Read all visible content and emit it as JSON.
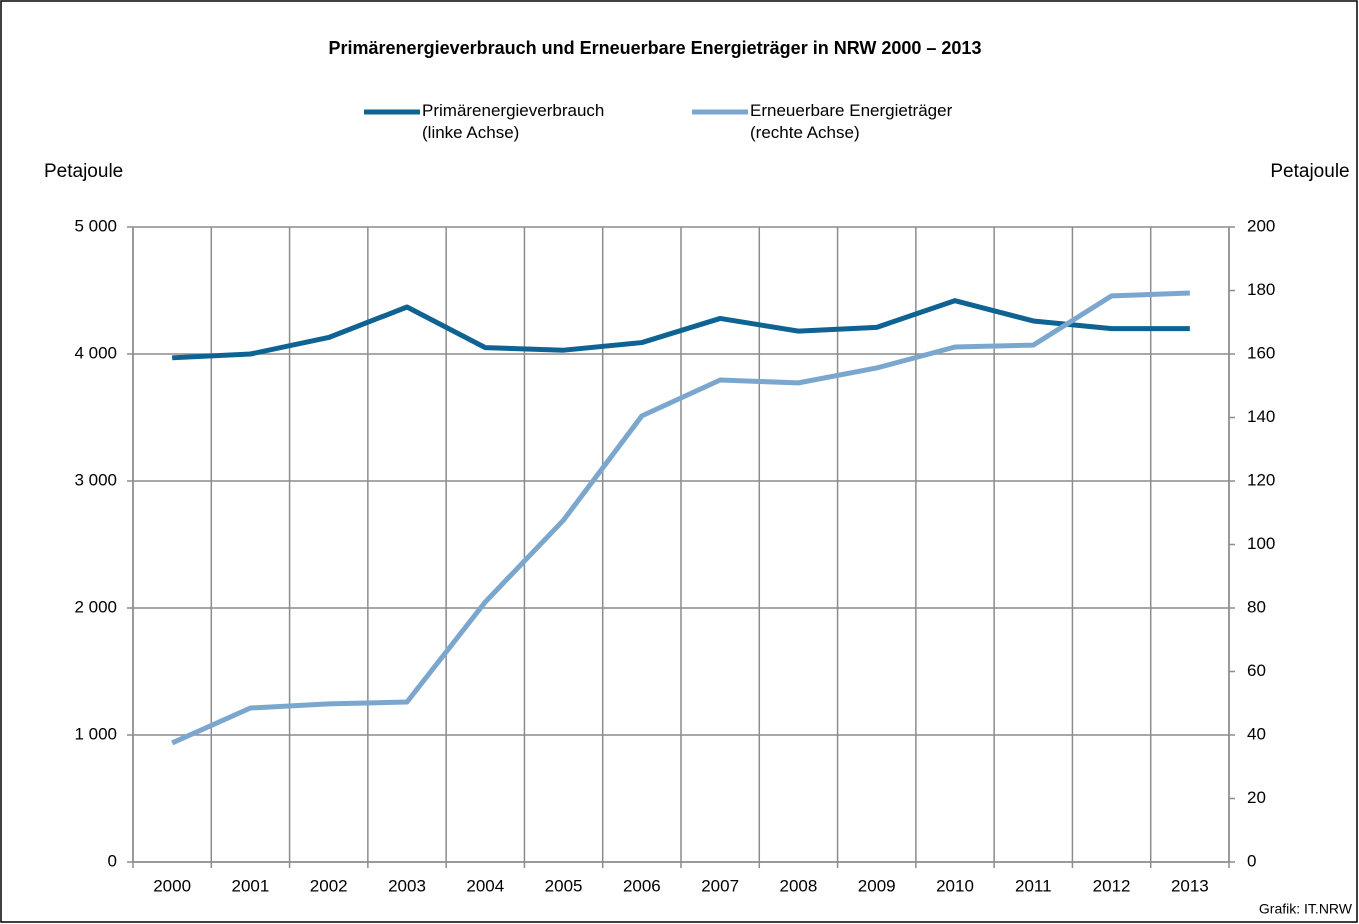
{
  "chart_data": {
    "type": "line",
    "title": "Primärenergieverbrauch und Erneuerbare Energieträger in NRW 2000 – 2013",
    "y_label": "Petajoule",
    "y2_label": "Petajoule",
    "source": "Grafik: IT.NRW",
    "categories": [
      "2000",
      "2001",
      "2002",
      "2003",
      "2004",
      "2005",
      "2006",
      "2007",
      "2008",
      "2009",
      "2010",
      "2011",
      "2012",
      "2013"
    ],
    "series": [
      {
        "name": "Primärenergieverbrauch\n(linke Achse)",
        "color": "#0e6393",
        "axis": "y",
        "values": [
          3970,
          4000,
          4130,
          4370,
          4050,
          4030,
          4090,
          4280,
          4180,
          4210,
          4420,
          4260,
          4200,
          4200
        ]
      },
      {
        "name": "Erneuerbare Energieträger\n(rechte Achse)",
        "color": "#7ba7cf",
        "axis": "y2",
        "values": [
          37.5,
          48.5,
          49.8,
          50.4,
          81.9,
          107.7,
          140.5,
          151.8,
          150.9,
          155.6,
          162.2,
          162.8,
          178.3,
          179.2
        ]
      }
    ],
    "ylim": [
      0,
      5000
    ],
    "yticks": [
      0,
      {
        "value": 1000,
        "label": "1 000"
      },
      {
        "value": 2000,
        "label": "2 000"
      },
      {
        "value": 3000,
        "label": "3 000"
      },
      {
        "value": 4000,
        "label": "4 000"
      },
      {
        "value": 5000,
        "label": "5 000"
      }
    ],
    "y2lim": [
      0,
      200
    ],
    "y2ticks": [
      0,
      20,
      40,
      60,
      80,
      100,
      120,
      140,
      160,
      180,
      200
    ],
    "grid": true
  }
}
